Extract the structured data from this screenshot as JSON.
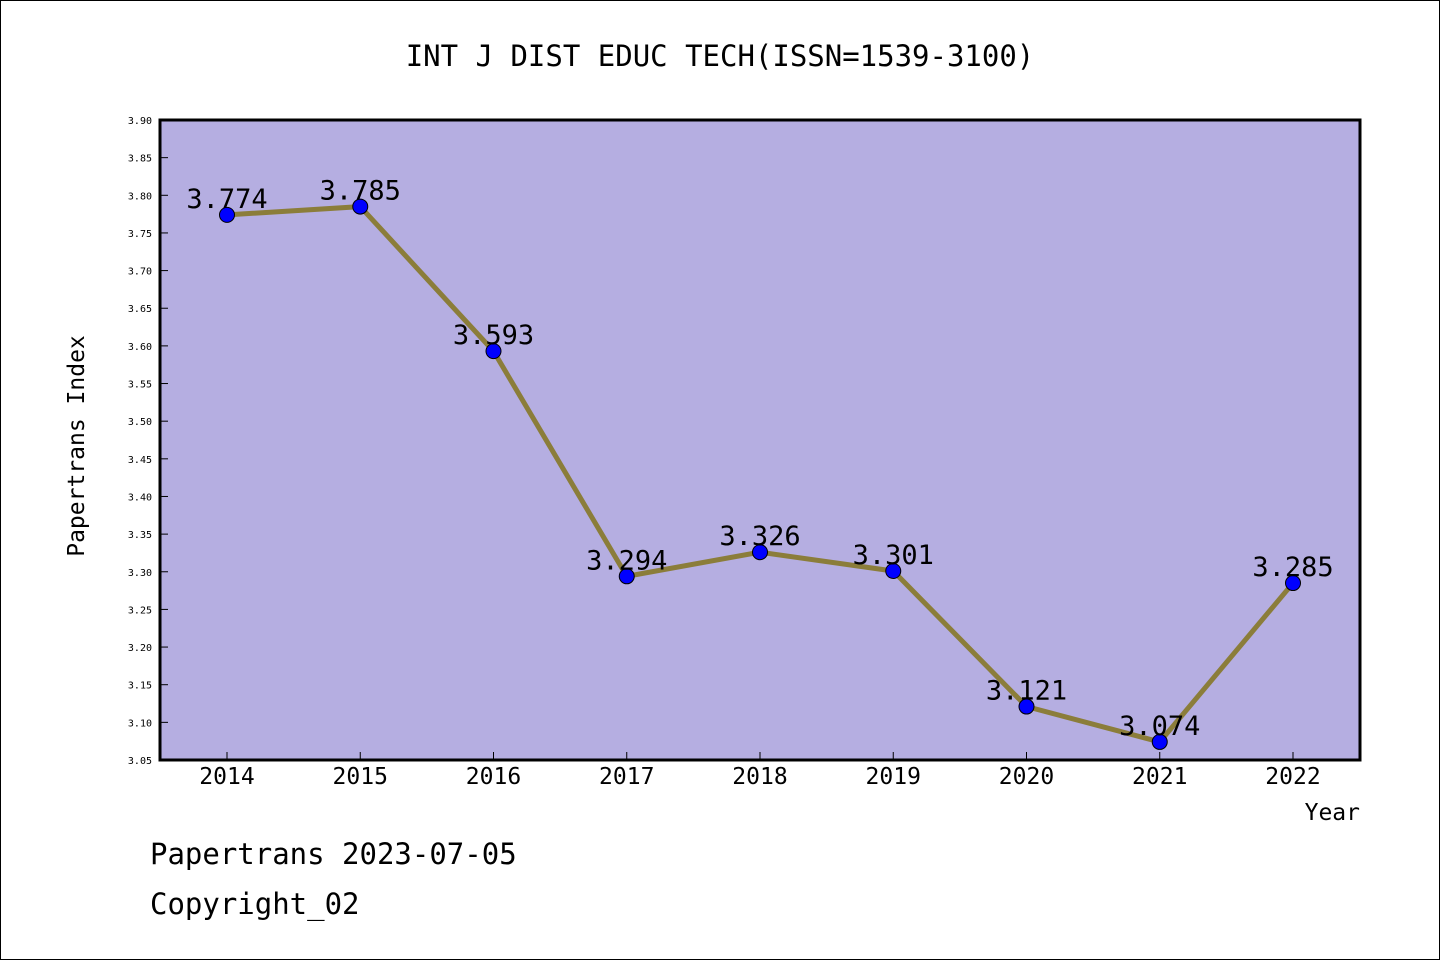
{
  "chart_data": {
    "type": "line",
    "title": "INT J DIST EDUC TECH(ISSN=1539-3100)",
    "xlabel": "Year",
    "ylabel": "Papertrans Index",
    "categories": [
      "2014",
      "2015",
      "2016",
      "2017",
      "2018",
      "2019",
      "2020",
      "2021",
      "2022"
    ],
    "series": [
      {
        "values": [
          3.774,
          3.785,
          3.593,
          3.294,
          3.326,
          3.301,
          3.121,
          3.074,
          3.285
        ]
      }
    ],
    "data_labels": [
      "3.774",
      "3.785",
      "3.593",
      "3.294",
      "3.326",
      "3.301",
      "3.121",
      "3.074",
      "3.285"
    ],
    "ylim": [
      3.05,
      3.9
    ],
    "yticks": [
      "3.05",
      "3.10",
      "3.15",
      "3.20",
      "3.25",
      "3.30",
      "3.35",
      "3.40",
      "3.45",
      "3.50",
      "3.55",
      "3.60",
      "3.65",
      "3.70",
      "3.75",
      "3.80",
      "3.85",
      "3.90"
    ],
    "grid": false,
    "colors": {
      "plot_background": "#b5aee1",
      "line": "#8b7d3a",
      "marker": "#0000ff"
    }
  },
  "footer": {
    "date_line": "Papertrans 2023-07-05",
    "copyright_line": "Copyright_02"
  }
}
